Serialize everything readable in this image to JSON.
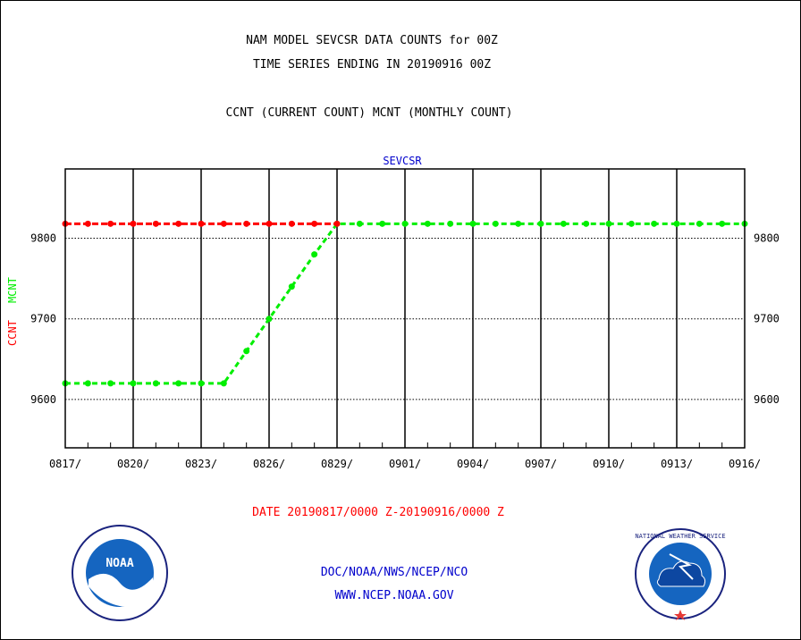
{
  "header": {
    "title_line1": "NAM MODEL SEVCSR DATA COUNTS for 00Z",
    "title_line2": "TIME SERIES ENDING IN 20190916 00Z",
    "subtitle": "CCNT (CURRENT COUNT) MCNT (MONTHLY COUNT)"
  },
  "footer": {
    "date_range": "DATE 20190817/0000 Z-20190916/0000 Z",
    "org_line": "DOC/NOAA/NWS/NCEP/NCO",
    "url_line": "WWW.NCEP.NOAA.GOV",
    "noaa_logo_text": "NOAA",
    "nws_logo_text": "NATIONAL WEATHER SERVICE"
  },
  "colors": {
    "ccnt": "#ff0000",
    "mcnt": "#00ee00",
    "axis": "#000000",
    "title_blue": "#0000cc"
  },
  "chart_data": {
    "type": "line",
    "title": "SEVCSR",
    "ylabel_parts": [
      "CCNT",
      "MCNT"
    ],
    "x_tick_labels": [
      "0817/",
      "0820/",
      "0823/",
      "0826/",
      "0829/",
      "0901/",
      "0904/",
      "0907/",
      "0910/",
      "0913/",
      "0916/"
    ],
    "y_ticks": [
      9600,
      9700,
      9800
    ],
    "ylim": [
      9540,
      9886
    ],
    "x_count": 31,
    "grid": true,
    "series": [
      {
        "name": "CCNT",
        "color": "#ff0000",
        "start_index": 0,
        "values": [
          9818,
          9818,
          9818,
          9818,
          9818,
          9818,
          9818,
          9818,
          9818,
          9818,
          9818,
          9818,
          9818
        ]
      },
      {
        "name": "MCNT",
        "color": "#00ee00",
        "start_index": 0,
        "values": [
          9620,
          9620,
          9620,
          9620,
          9620,
          9620,
          9620,
          9620,
          9660,
          9700,
          9740,
          9780,
          9818,
          9818,
          9818,
          9818,
          9818,
          9818,
          9818,
          9818,
          9818,
          9818,
          9818,
          9818,
          9818,
          9818,
          9818,
          9818,
          9818,
          9818,
          9818
        ]
      }
    ]
  }
}
